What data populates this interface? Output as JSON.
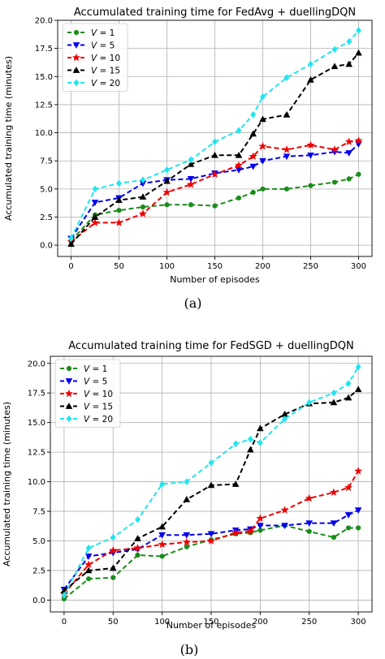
{
  "chart_data": [
    {
      "type": "line",
      "title": "Accumulated training time for FedAvg + duellingDQN",
      "xlabel": "Number of episodes",
      "ylabel": "Accumulated training time (minutes)",
      "caption": "(a)",
      "xlim": [
        -14,
        314
      ],
      "ylim": [
        -1.0,
        20.0
      ],
      "xticks": [
        0,
        50,
        100,
        150,
        200,
        250,
        300
      ],
      "yticks": [
        0.0,
        2.5,
        5.0,
        7.5,
        10.0,
        12.5,
        15.0,
        17.5,
        20.0
      ],
      "ytick_labels": [
        "0.0",
        "2.5",
        "5.0",
        "7.5",
        "10.0",
        "12.5",
        "15.0",
        "17.5",
        "20.0"
      ],
      "grid": true,
      "legend_position": "upper-left",
      "x": [
        0,
        25,
        50,
        75,
        100,
        125,
        150,
        175,
        190,
        200,
        225,
        250,
        275,
        290,
        300
      ],
      "series": [
        {
          "name": "V = 1",
          "color": "#1a8c1a",
          "marker": "circle",
          "values": [
            0.4,
            2.7,
            3.1,
            3.4,
            3.6,
            3.6,
            3.5,
            4.2,
            4.7,
            5.0,
            5.0,
            5.3,
            5.6,
            5.9,
            6.3
          ]
        },
        {
          "name": "V = 5",
          "color": "#0000ee",
          "marker": "triangle-down",
          "values": [
            0.6,
            3.8,
            4.2,
            5.5,
            5.8,
            5.9,
            6.4,
            6.7,
            7.0,
            7.5,
            7.9,
            8.0,
            8.3,
            8.2,
            9.0
          ]
        },
        {
          "name": "V = 10",
          "color": "#ee0000",
          "marker": "star",
          "values": [
            0.3,
            2.0,
            2.0,
            2.8,
            4.7,
            5.4,
            6.3,
            7.1,
            7.9,
            8.8,
            8.5,
            8.9,
            8.5,
            9.2,
            9.3
          ]
        },
        {
          "name": "V = 15",
          "color": "#000000",
          "marker": "triangle-up",
          "values": [
            0.1,
            2.5,
            4.0,
            4.3,
            5.7,
            7.2,
            8.0,
            8.0,
            9.9,
            11.2,
            11.6,
            14.7,
            15.9,
            16.1,
            17.1
          ]
        },
        {
          "name": "V = 20",
          "color": "#22e5ee",
          "marker": "diamond",
          "values": [
            0.6,
            5.0,
            5.5,
            5.8,
            6.7,
            7.6,
            9.2,
            10.2,
            11.6,
            13.2,
            14.9,
            16.1,
            17.4,
            18.1,
            19.1
          ]
        }
      ]
    },
    {
      "type": "line",
      "title": "Accumulated training time for FedSGD + duellingDQN",
      "xlabel": "Number of episodes",
      "ylabel": "Accumulated training time (minutes)",
      "caption": "(b)",
      "xlim": [
        -14,
        314
      ],
      "ylim": [
        -1.0,
        20.6
      ],
      "xticks": [
        0,
        50,
        100,
        150,
        200,
        250,
        300
      ],
      "yticks": [
        0.0,
        2.5,
        5.0,
        7.5,
        10.0,
        12.5,
        15.0,
        17.5,
        20.0
      ],
      "ytick_labels": [
        "0.0",
        "2.5",
        "5.0",
        "7.5",
        "10.0",
        "12.5",
        "15.0",
        "17.5",
        "20.0"
      ],
      "grid": true,
      "legend_position": "upper-left",
      "x": [
        0,
        25,
        50,
        75,
        100,
        125,
        150,
        175,
        190,
        200,
        225,
        250,
        275,
        290,
        300
      ],
      "series": [
        {
          "name": "V = 1",
          "color": "#1a8c1a",
          "marker": "circle",
          "values": [
            0.1,
            1.8,
            1.9,
            3.8,
            3.7,
            4.5,
            5.1,
            5.6,
            5.7,
            5.9,
            6.3,
            5.8,
            5.3,
            6.1,
            6.1
          ]
        },
        {
          "name": "V = 5",
          "color": "#0000ee",
          "marker": "triangle-down",
          "values": [
            0.9,
            3.7,
            4.0,
            4.3,
            5.5,
            5.5,
            5.6,
            5.9,
            6.0,
            6.3,
            6.3,
            6.5,
            6.5,
            7.2,
            7.6
          ]
        },
        {
          "name": "V = 10",
          "color": "#ee0000",
          "marker": "star",
          "values": [
            0.5,
            3.0,
            4.2,
            4.4,
            4.7,
            4.9,
            5.0,
            5.7,
            5.8,
            6.9,
            7.6,
            8.6,
            9.1,
            9.5,
            10.9
          ]
        },
        {
          "name": "V = 15",
          "color": "#000000",
          "marker": "triangle-up",
          "values": [
            0.8,
            2.5,
            2.7,
            5.2,
            6.2,
            8.5,
            9.7,
            9.8,
            12.7,
            14.5,
            15.7,
            16.6,
            16.7,
            17.1,
            17.8
          ]
        },
        {
          "name": "V = 20",
          "color": "#22e5ee",
          "marker": "diamond",
          "values": [
            0.4,
            4.4,
            5.3,
            6.8,
            9.8,
            10.0,
            11.6,
            13.2,
            13.6,
            13.3,
            15.3,
            16.7,
            17.5,
            18.3,
            19.7
          ]
        }
      ]
    }
  ]
}
